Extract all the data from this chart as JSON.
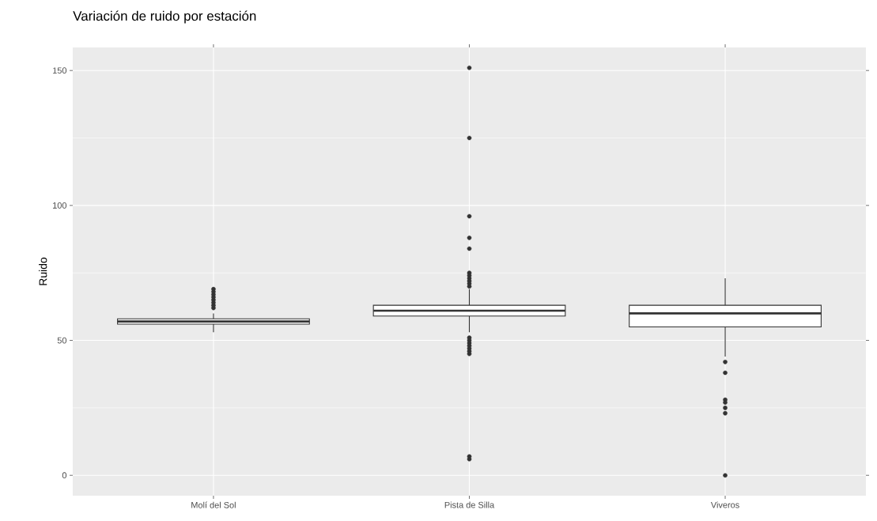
{
  "chart_data": {
    "type": "box",
    "title": "Variación de ruido por estación",
    "ylabel": "Ruido",
    "categories": [
      "Molí del Sol",
      "Pista de Silla",
      "Viveros"
    ],
    "boxes": [
      {
        "low": 53,
        "q1": 56,
        "median": 57,
        "q3": 58,
        "high": 60,
        "outliers": [
          62,
          63,
          64,
          65,
          66,
          67,
          68,
          69
        ]
      },
      {
        "low": 53,
        "q1": 59,
        "median": 61,
        "q3": 63,
        "high": 69,
        "outliers": [
          151,
          125,
          96,
          88,
          84,
          75,
          74,
          73,
          72,
          71,
          70,
          51,
          50,
          49,
          48,
          47,
          46,
          45,
          7,
          6
        ]
      },
      {
        "low": 44,
        "q1": 55,
        "median": 60,
        "q3": 63,
        "high": 73,
        "outliers": [
          42,
          38,
          28,
          27,
          25,
          23,
          0
        ]
      }
    ],
    "ylim": [
      -7.55,
      158.55
    ],
    "yticks": [
      0,
      50,
      100,
      150
    ],
    "grid": true,
    "color": "#333333"
  }
}
